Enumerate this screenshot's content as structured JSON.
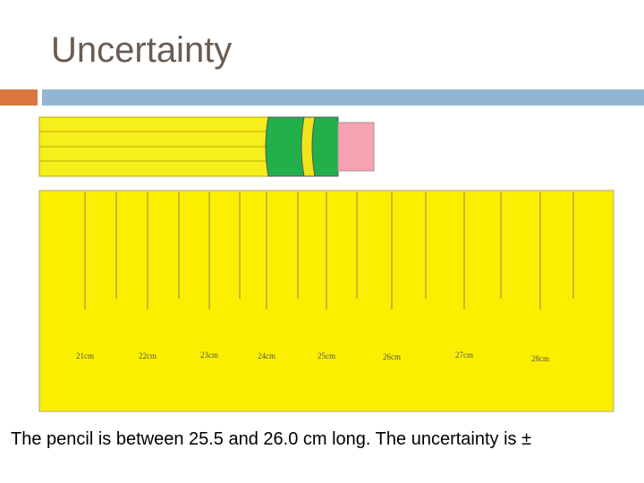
{
  "title": "Uncertainty",
  "ruler": {
    "labels": [
      "21cm",
      "22cm",
      "23cm",
      "24cm",
      "25cm",
      "26cm",
      "27cm",
      "28cm"
    ]
  },
  "caption": "The pencil is between 25.5 and 26.0 cm long. The uncertainty is ±"
}
